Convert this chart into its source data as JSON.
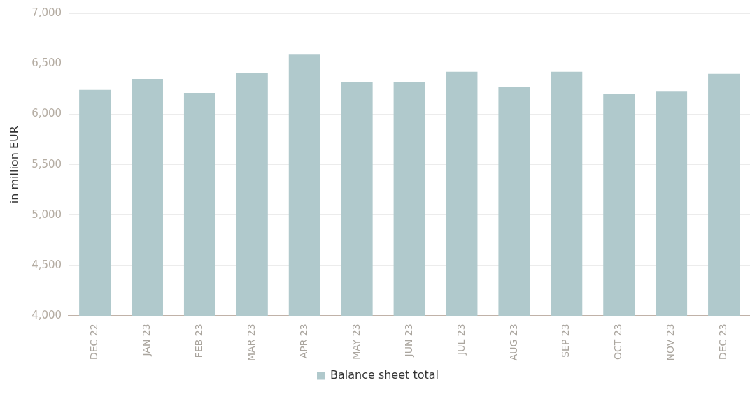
{
  "chart_data": {
    "type": "bar",
    "ylabel": "in million EUR",
    "categories": [
      "DEC 22",
      "JAN 23",
      "FEB 23",
      "MAR 23",
      "APR 23",
      "MAY 23",
      "JUN 23",
      "JUL 23",
      "AUG 23",
      "SEP 23",
      "OCT 23",
      "NOV 23",
      "DEC 23"
    ],
    "series": [
      {
        "name": "Balance sheet total",
        "color": "#b0c9cc",
        "values": [
          6240,
          6350,
          6210,
          6410,
          6590,
          6320,
          6320,
          6420,
          6270,
          6420,
          6200,
          6230,
          6400
        ]
      }
    ],
    "ylim": [
      4000,
      7000
    ],
    "yticks": [
      {
        "value": 4000,
        "label": "4,000"
      },
      {
        "value": 4500,
        "label": "4,500"
      },
      {
        "value": 5000,
        "label": "5,000"
      },
      {
        "value": 5500,
        "label": "5,500"
      },
      {
        "value": 6000,
        "label": "6,000"
      },
      {
        "value": 6500,
        "label": "6,500"
      },
      {
        "value": 7000,
        "label": "7,000"
      }
    ],
    "grid": "y",
    "legend": "bottom"
  }
}
